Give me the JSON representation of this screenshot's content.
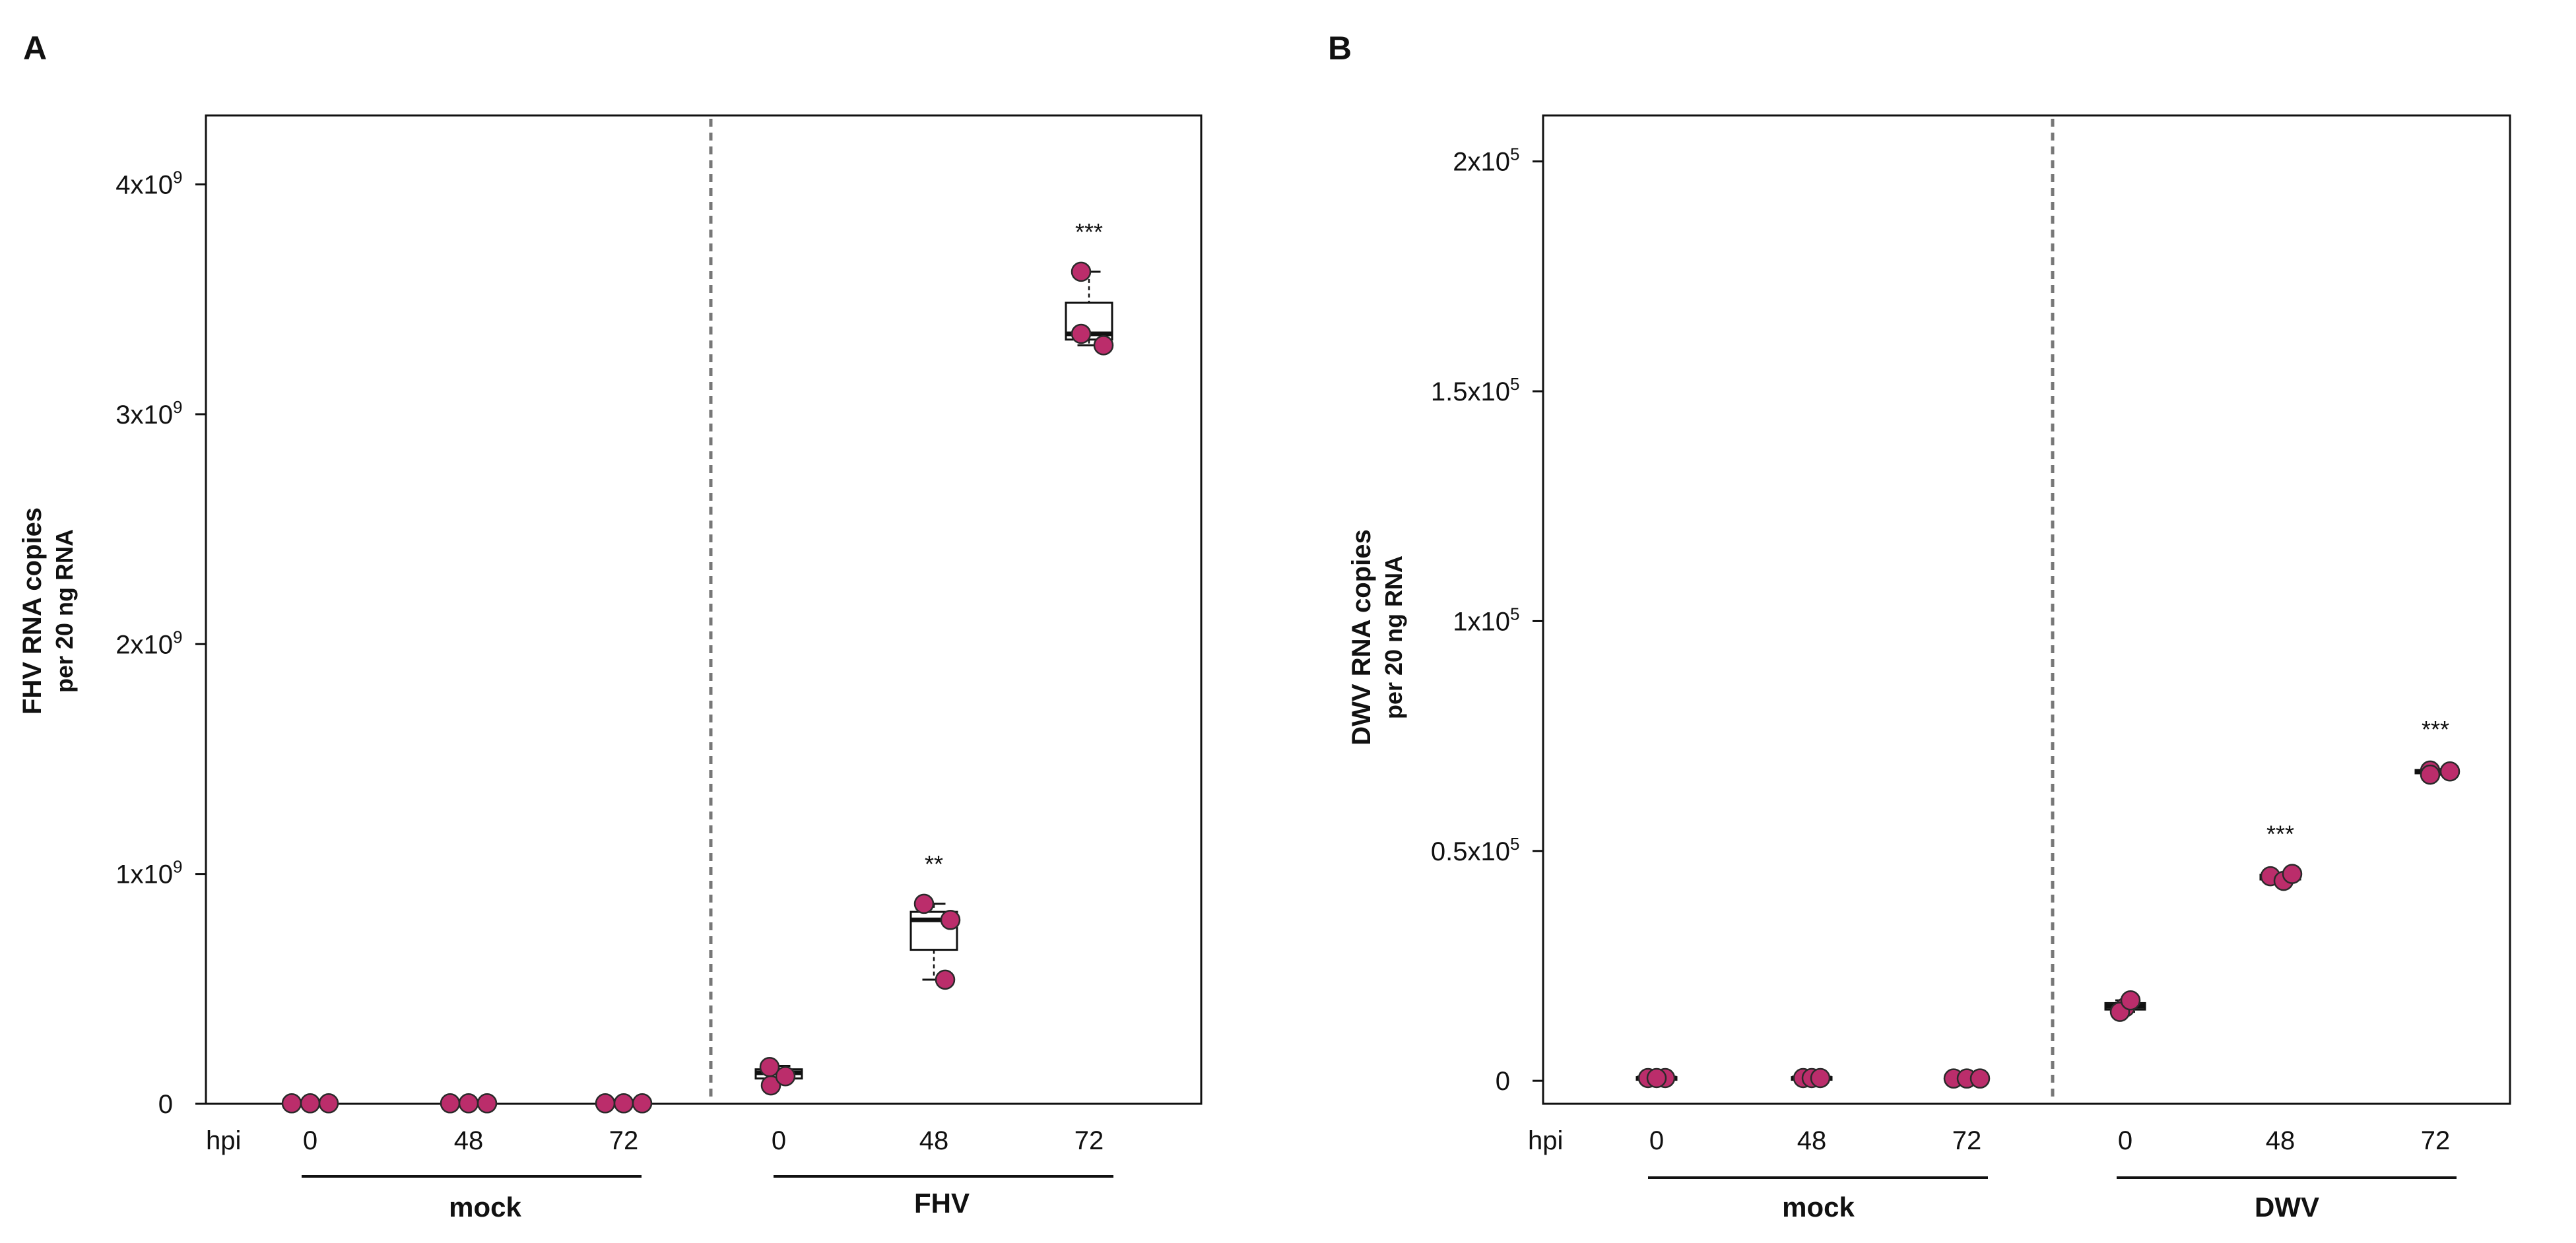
{
  "chart_data": [
    {
      "type": "box",
      "panel": "A",
      "ylabel": [
        "FHV RNA copies",
        "per 20 ng RNA"
      ],
      "x_axis_label": "hpi",
      "ylim": [
        0,
        4300000000
      ],
      "yticks": [
        {
          "value": 0,
          "base": "0",
          "exp": ""
        },
        {
          "value": 1000000000,
          "base": "1x10",
          "exp": "9"
        },
        {
          "value": 2000000000,
          "base": "2x10",
          "exp": "9"
        },
        {
          "value": 3000000000,
          "base": "3x10",
          "exp": "9"
        },
        {
          "value": 4000000000,
          "base": "4x10",
          "exp": "9"
        }
      ],
      "groups": [
        {
          "name": "mock",
          "categories": [
            {
              "label": "0",
              "points": [
                2000000,
                2000000,
                2000000
              ],
              "box": {
                "q1": 1000000,
                "median": 2000000,
                "q3": 3000000,
                "whisker_low": 0,
                "whisker_high": 4000000
              },
              "sig": ""
            },
            {
              "label": "48",
              "points": [
                2000000,
                2000000,
                2000000
              ],
              "box": {
                "q1": 1000000,
                "median": 2000000,
                "q3": 3000000,
                "whisker_low": 0,
                "whisker_high": 4000000
              },
              "sig": ""
            },
            {
              "label": "72",
              "points": [
                2000000,
                2000000,
                2000000
              ],
              "box": {
                "q1": 1000000,
                "median": 2000000,
                "q3": 3000000,
                "whisker_low": 0,
                "whisker_high": 4000000
              },
              "sig": ""
            }
          ]
        },
        {
          "name": "FHV",
          "categories": [
            {
              "label": "0",
              "points": [
                80000000,
                160000000,
                120000000
              ],
              "box": {
                "q1": 110000000,
                "median": 135000000,
                "q3": 150000000,
                "whisker_low": 90000000,
                "whisker_high": 165000000
              },
              "sig": ""
            },
            {
              "label": "48",
              "points": [
                870000000,
                800000000,
                540000000
              ],
              "box": {
                "q1": 670000000,
                "median": 800000000,
                "q3": 835000000,
                "whisker_low": 540000000,
                "whisker_high": 870000000
              },
              "sig": "**"
            },
            {
              "label": "72",
              "points": [
                3620000000,
                3350000000,
                3300000000
              ],
              "box": {
                "q1": 3325000000,
                "median": 3350000000,
                "q3": 3485000000,
                "whisker_low": 3300000000,
                "whisker_high": 3620000000
              },
              "sig": "***"
            }
          ]
        }
      ]
    },
    {
      "type": "box",
      "panel": "B",
      "ylabel": [
        "DWV RNA copies",
        "per 20 ng RNA"
      ],
      "x_axis_label": "hpi",
      "ylim": [
        -5000,
        210000
      ],
      "yticks": [
        {
          "value": 0,
          "base": "0",
          "exp": ""
        },
        {
          "value": 50000,
          "base": "0.5x10",
          "exp": "5"
        },
        {
          "value": 100000,
          "base": "1x10",
          "exp": "5"
        },
        {
          "value": 150000,
          "base": "1.5x10",
          "exp": "5"
        },
        {
          "value": 200000,
          "base": "2x10",
          "exp": "5"
        }
      ],
      "groups": [
        {
          "name": "mock",
          "categories": [
            {
              "label": "0",
              "points": [
                600,
                600,
                600
              ],
              "box": {
                "q1": 400,
                "median": 600,
                "q3": 800,
                "whisker_low": 300,
                "whisker_high": 900
              },
              "sig": ""
            },
            {
              "label": "48",
              "points": [
                600,
                600,
                600
              ],
              "box": {
                "q1": 400,
                "median": 600,
                "q3": 800,
                "whisker_low": 300,
                "whisker_high": 900
              },
              "sig": ""
            },
            {
              "label": "72",
              "points": [
                500,
                500,
                500
              ],
              "box": {
                "q1": 300,
                "median": 500,
                "q3": 700,
                "whisker_low": 200,
                "whisker_high": 800
              },
              "sig": ""
            }
          ]
        },
        {
          "name": "DWV",
          "categories": [
            {
              "label": "0",
              "points": [
                16000,
                15000,
                17500
              ],
              "box": {
                "q1": 15500,
                "median": 16200,
                "q3": 16900,
                "whisker_low": 15000,
                "whisker_high": 17500
              },
              "sig": ""
            },
            {
              "label": "48",
              "points": [
                44500,
                43500,
                45000
              ],
              "box": {
                "q1": 43800,
                "median": 44300,
                "q3": 44800,
                "whisker_low": 43500,
                "whisker_high": 45000
              },
              "sig": "***"
            },
            {
              "label": "72",
              "points": [
                67500,
                67300,
                66600
              ],
              "box": {
                "q1": 66900,
                "median": 67200,
                "q3": 67600,
                "whisker_low": 66600,
                "whisker_high": 67800
              },
              "sig": "***"
            }
          ]
        }
      ]
    }
  ],
  "colors": {
    "point_fill": "#bb2d6b",
    "point_stroke": "#2a2a2a",
    "axis": "#111111",
    "divider": "#777777"
  }
}
